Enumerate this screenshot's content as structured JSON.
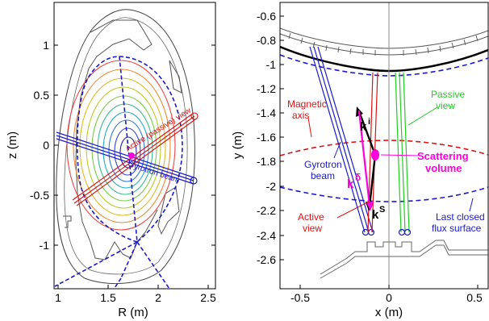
{
  "left_panel": {
    "xlabel": "R (m)",
    "ylabel": "z (m)",
    "x_ticks": [
      "1",
      "1.5",
      "2",
      "2.5"
    ],
    "y_ticks": [
      "1",
      "0.5",
      "0",
      "-0.5",
      "-1"
    ],
    "annotations": {
      "active_passive_view": "Active (passive) view",
      "gyrotron_beam": "Gyrotron beam"
    },
    "colors": {
      "beam": "#1a1acc",
      "view": "#dd1111",
      "scatter": "#ff00dd",
      "separatrix": "#1a1acc"
    }
  },
  "right_panel": {
    "xlabel": "x (m)",
    "ylabel": "y (m)",
    "x_ticks": [
      "-0.5",
      "0",
      "0.5"
    ],
    "y_ticks": [
      "-0.6",
      "-0.8",
      "-1",
      "-1.2",
      "-1.4",
      "-1.6",
      "-1.8",
      "-2",
      "-2.2",
      "-2.4",
      "-2.6"
    ],
    "annotations": {
      "magnetic_axis_line1": "Magnetic",
      "magnetic_axis_line2": "axis",
      "passive_view_line1": "Passive",
      "passive_view_line2": "view",
      "gyrotron_beam_line1": "Gyrotron",
      "gyrotron_beam_line2": "beam",
      "scattering_volume_line1": "Scattering",
      "scattering_volume_line2": "volume",
      "active_view_line1": "Active",
      "active_view_line2": "view",
      "last_closed_line1": "Last closed",
      "last_closed_line2": "flux surface",
      "k_i": "k",
      "k_i_sup": "i",
      "k_s": "k",
      "k_s_sup": "S",
      "k_delta": "k",
      "k_delta_sup": "δ"
    },
    "colors": {
      "beam": "#1a1acc",
      "active": "#dd1111",
      "passive": "#22cc22",
      "scatter": "#ff00dd",
      "wall": "#000000"
    }
  }
}
